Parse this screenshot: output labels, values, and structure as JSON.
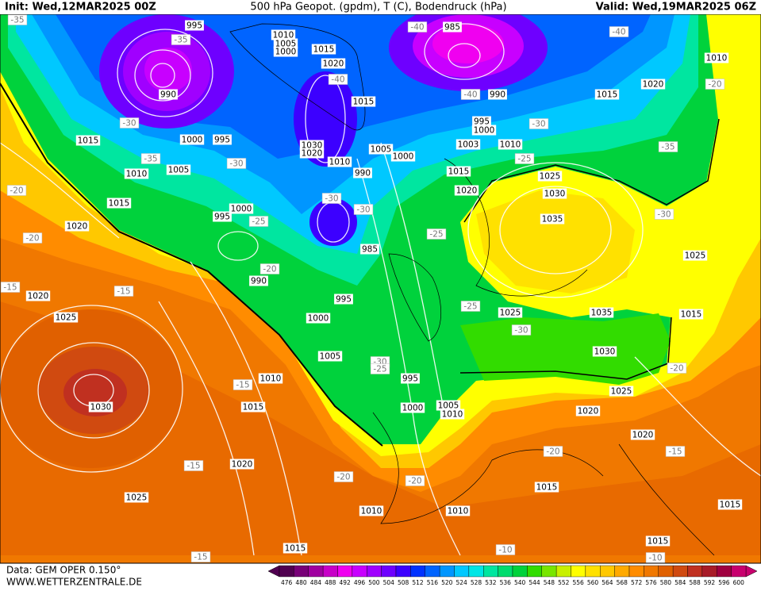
{
  "header": {
    "init": "Init: Wed,12MAR2025 00Z",
    "title": "500 hPa Geopot. (gpdm), T (C), Bodendruck (hPa)",
    "valid": "Valid: Wed,19MAR2025 06Z"
  },
  "footer": {
    "source": "Data: GEM OPER 0.150°",
    "site": "WWW.WETTERZENTRALE.DE"
  },
  "legend": {
    "levels": [
      476,
      480,
      484,
      488,
      492,
      496,
      500,
      504,
      508,
      512,
      516,
      520,
      524,
      528,
      532,
      536,
      540,
      544,
      548,
      552,
      556,
      560,
      564,
      568,
      572,
      576,
      580,
      584,
      588,
      592,
      596,
      600
    ],
    "colors": [
      "#500050",
      "#780078",
      "#a000a0",
      "#c800c8",
      "#f000f0",
      "#c800ff",
      "#a000ff",
      "#6e00ff",
      "#3c00ff",
      "#0032ff",
      "#0064ff",
      "#0096ff",
      "#00c8ff",
      "#00e6e6",
      "#00e6a0",
      "#00dc6e",
      "#00d23c",
      "#32dc00",
      "#78e600",
      "#c8f000",
      "#ffff00",
      "#ffe100",
      "#ffc800",
      "#ffaa00",
      "#ff8c00",
      "#f07800",
      "#e06000",
      "#d04a10",
      "#c03020",
      "#a81c28",
      "#a00040",
      "#c8006e"
    ]
  },
  "pressure_labels": [
    "995",
    "1010",
    "1005",
    "1000",
    "1015",
    "1020",
    "985",
    "1010",
    "1020",
    "990",
    "1015",
    "990",
    "1015",
    "995",
    "1000",
    "1015",
    "1000",
    "995",
    "1030",
    "1020",
    "1005",
    "1000",
    "1003",
    "1010",
    "1010",
    "1010",
    "1005",
    "990",
    "1015",
    "1025",
    "1020",
    "1030",
    "1015",
    "1000",
    "995",
    "1035",
    "1020",
    "985",
    "1025",
    "990",
    "1020",
    "995",
    "1025",
    "1035",
    "1015",
    "1025",
    "1000",
    "1030",
    "1005",
    "1010",
    "995",
    "1025",
    "1015",
    "1030",
    "1000",
    "1005",
    "1010",
    "1020",
    "1020",
    "1020",
    "1015",
    "1025",
    "1010",
    "1010",
    "1015",
    "1015",
    "1015"
  ],
  "temperature_labels": [
    "-35",
    "-35",
    "-40",
    "-40",
    "-40",
    "-40",
    "-20",
    "-30",
    "-30",
    "-35",
    "-35",
    "-30",
    "-25",
    "-20",
    "-30",
    "-30",
    "-25",
    "-20",
    "-25",
    "-30",
    "-20",
    "-15",
    "-15",
    "-25",
    "-30",
    "-30",
    "-25",
    "-20",
    "-15",
    "-15",
    "-20",
    "-15",
    "-20",
    "-20",
    "-15",
    "-10",
    "-10"
  ]
}
